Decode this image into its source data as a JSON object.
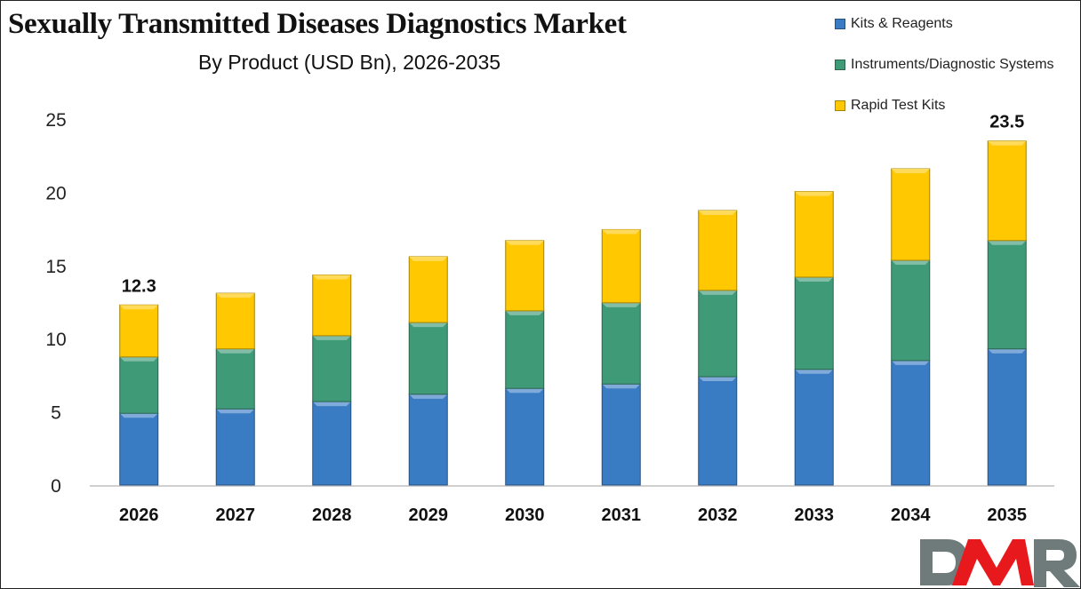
{
  "chart_data": {
    "type": "bar",
    "stacked": true,
    "title": "Sexually Transmitted Diseases Diagnostics Market",
    "subtitle": "By Product (USD Bn), 2026-2035",
    "xlabel": "",
    "ylabel": "",
    "ylim": [
      0,
      25
    ],
    "yticks": [
      "0",
      "5",
      "10",
      "15",
      "20",
      "25"
    ],
    "grid": false,
    "legend_position": "top-right",
    "categories": [
      "2026",
      "2027",
      "2028",
      "2029",
      "2030",
      "2031",
      "2032",
      "2033",
      "2034",
      "2035"
    ],
    "series": [
      {
        "name": "Kits & Reagents",
        "color": "#3a7cc4",
        "values": [
          4.9,
          5.2,
          5.7,
          6.2,
          6.6,
          6.9,
          7.4,
          7.9,
          8.5,
          9.3
        ]
      },
      {
        "name": "Instruments/Diagnostic Systems",
        "color": "#3f9a78",
        "values": [
          3.85,
          4.1,
          4.5,
          4.9,
          5.3,
          5.55,
          5.9,
          6.3,
          6.85,
          7.4
        ]
      },
      {
        "name": "Rapid Test Kits",
        "color": "#ffc800",
        "values": [
          3.55,
          3.8,
          4.15,
          4.5,
          4.8,
          5.0,
          5.45,
          5.85,
          6.25,
          6.8
        ]
      }
    ],
    "data_labels": [
      {
        "category": "2026",
        "text": "12.3"
      },
      {
        "category": "2035",
        "text": "23.5"
      }
    ]
  },
  "logo": {
    "text": "DMR",
    "colors": {
      "D": "#6f7b7b",
      "M": "#e8191d",
      "R": "#6f7b7b"
    }
  }
}
